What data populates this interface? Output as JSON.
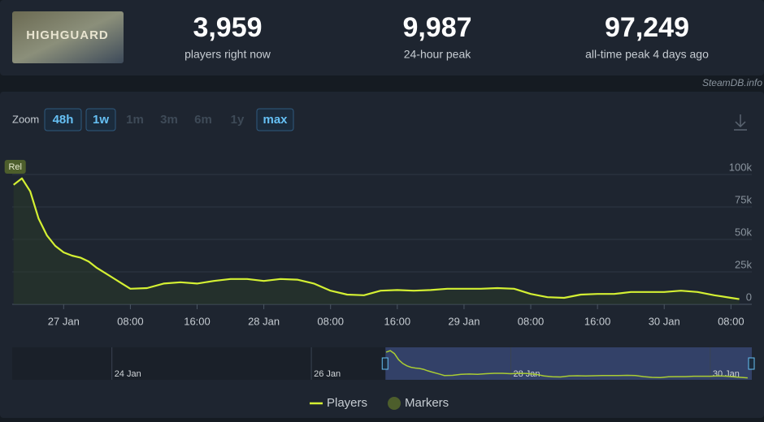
{
  "header": {
    "game": "HIGHGUARD",
    "stats": [
      {
        "value": "3,959",
        "label": "players right now"
      },
      {
        "value": "9,987",
        "label": "24-hour peak"
      },
      {
        "value": "97,249",
        "label": "all-time peak 4 days ago"
      }
    ],
    "watermark": "SteamDB.info"
  },
  "zoom": {
    "label": "Zoom",
    "options": [
      {
        "label": "48h",
        "active": true
      },
      {
        "label": "1w",
        "active": true
      },
      {
        "label": "1m",
        "active": false
      },
      {
        "label": "3m",
        "active": false
      },
      {
        "label": "6m",
        "active": false
      },
      {
        "label": "1y",
        "active": false
      },
      {
        "label": "max",
        "active": true
      }
    ]
  },
  "chart_data": {
    "type": "line",
    "x": [
      "26 Jan 18:00",
      "26 Jan 19:00",
      "26 Jan 20:00",
      "26 Jan 21:00",
      "26 Jan 22:00",
      "26 Jan 23:00",
      "27 Jan 00:00",
      "27 Jan 01:00",
      "27 Jan 02:00",
      "27 Jan 03:00",
      "27 Jan 04:00",
      "27 Jan 05:00",
      "27 Jan 06:00",
      "27 Jan 07:00",
      "27 Jan 08:00",
      "27 Jan 10:00",
      "27 Jan 12:00",
      "27 Jan 14:00",
      "27 Jan 16:00",
      "27 Jan 18:00",
      "27 Jan 20:00",
      "27 Jan 22:00",
      "28 Jan 00:00",
      "28 Jan 02:00",
      "28 Jan 04:00",
      "28 Jan 06:00",
      "28 Jan 08:00",
      "28 Jan 10:00",
      "28 Jan 12:00",
      "28 Jan 14:00",
      "28 Jan 16:00",
      "28 Jan 18:00",
      "28 Jan 20:00",
      "28 Jan 22:00",
      "29 Jan 00:00",
      "29 Jan 02:00",
      "29 Jan 04:00",
      "29 Jan 06:00",
      "29 Jan 08:00",
      "29 Jan 10:00",
      "29 Jan 12:00",
      "29 Jan 14:00",
      "29 Jan 16:00",
      "29 Jan 18:00",
      "29 Jan 20:00",
      "29 Jan 22:00",
      "30 Jan 00:00",
      "30 Jan 02:00",
      "30 Jan 04:00",
      "30 Jan 06:00",
      "30 Jan 08:00",
      "30 Jan 09:00"
    ],
    "series": [
      {
        "name": "Players",
        "color": "#d4f033",
        "values": [
          92000,
          97000,
          87000,
          66000,
          53000,
          45000,
          40000,
          37500,
          36000,
          33000,
          28000,
          24000,
          20000,
          16000,
          12000,
          12500,
          16000,
          17000,
          16000,
          18000,
          19500,
          19500,
          18000,
          19500,
          19000,
          16000,
          10500,
          7500,
          7000,
          10500,
          11000,
          10500,
          11000,
          12000,
          12000,
          12000,
          12500,
          12000,
          8000,
          5500,
          5000,
          7500,
          8000,
          8000,
          9500,
          9500,
          9500,
          10500,
          9500,
          7000,
          5000,
          4000
        ]
      }
    ],
    "xlim": [
      "26 Jan 17:50",
      "30 Jan 10:30"
    ],
    "xticks": [
      {
        "value": "27 Jan 00:00",
        "label": "27 Jan"
      },
      {
        "value": "27 Jan 08:00",
        "label": "08:00"
      },
      {
        "value": "27 Jan 16:00",
        "label": "16:00"
      },
      {
        "value": "28 Jan 00:00",
        "label": "28 Jan"
      },
      {
        "value": "28 Jan 08:00",
        "label": "08:00"
      },
      {
        "value": "28 Jan 16:00",
        "label": "16:00"
      },
      {
        "value": "29 Jan 00:00",
        "label": "29 Jan"
      },
      {
        "value": "29 Jan 08:00",
        "label": "08:00"
      },
      {
        "value": "29 Jan 16:00",
        "label": "16:00"
      },
      {
        "value": "30 Jan 00:00",
        "label": "30 Jan"
      },
      {
        "value": "30 Jan 08:00",
        "label": "08:00"
      }
    ],
    "ylim": [
      0,
      100000
    ],
    "yticks": [
      0,
      {
        "value": 25000,
        "label": "25k"
      },
      {
        "value": 50000,
        "label": "50k"
      },
      {
        "value": 75000,
        "label": "75k"
      },
      {
        "value": 100000,
        "label": "100k"
      }
    ],
    "grid": true,
    "markers": [
      {
        "x": "26 Jan 18:00",
        "label": "Rel"
      }
    ],
    "marker_legend": "Markers",
    "marker_color": "#4d5e2c",
    "navigator": {
      "xlim": [
        "23 Jan 00:00",
        "30 Jan 10:00"
      ],
      "xticks": [
        {
          "value": "24 Jan 00:00",
          "label": "24 Jan"
        },
        {
          "value": "26 Jan 00:00",
          "label": "26 Jan"
        },
        {
          "value": "28 Jan 00:00",
          "label": "28 Jan"
        },
        {
          "value": "30 Jan 00:00",
          "label": "30 Jan"
        }
      ]
    }
  }
}
